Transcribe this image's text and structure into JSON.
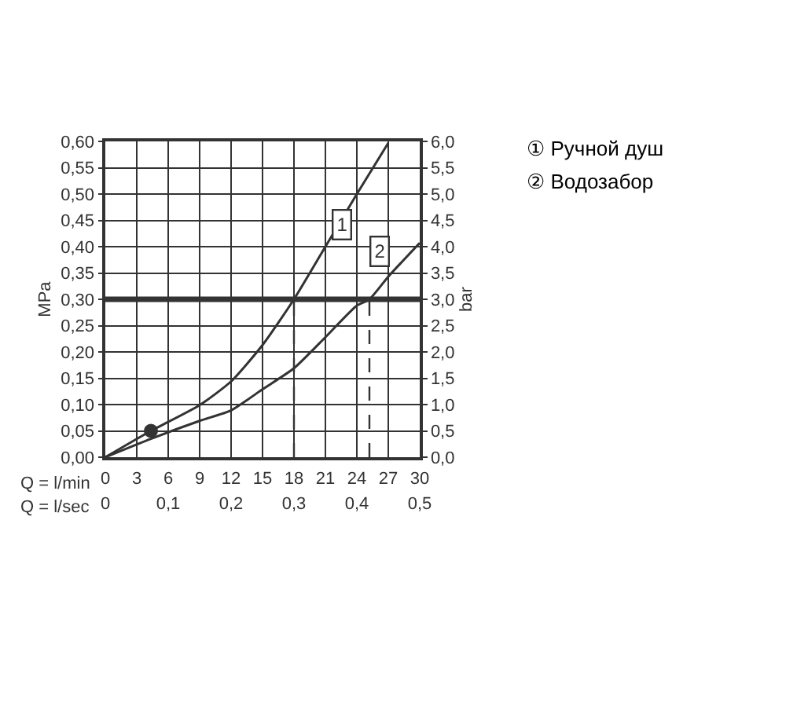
{
  "chart_data": {
    "type": "line",
    "xlabel": "Q = l/min",
    "x2label": "Q = l/sec",
    "ylabel": "MPa",
    "y2label": "bar",
    "xlim": [
      0,
      30
    ],
    "xticks": [
      0,
      3,
      6,
      9,
      12,
      15,
      18,
      21,
      24,
      27,
      30
    ],
    "x2lim": [
      0,
      0.5
    ],
    "x2ticks": [
      0,
      {
        "value": 0.1,
        "label": "0,1"
      },
      {
        "value": 0.2,
        "label": "0,2"
      },
      {
        "value": 0.3,
        "label": "0,3"
      },
      {
        "value": 0.4,
        "label": "0,4"
      },
      {
        "value": 0.5,
        "label": "0,5"
      }
    ],
    "ylim": [
      0,
      0.6
    ],
    "yticks": [
      {
        "value": 0,
        "label": "0,00"
      },
      {
        "value": 0.05,
        "label": "0,05"
      },
      {
        "value": 0.1,
        "label": "0,10"
      },
      {
        "value": 0.15,
        "label": "0,15"
      },
      {
        "value": 0.2,
        "label": "0,20"
      },
      {
        "value": 0.25,
        "label": "0,25"
      },
      {
        "value": 0.3,
        "label": "0,30"
      },
      {
        "value": 0.35,
        "label": "0,35"
      },
      {
        "value": 0.4,
        "label": "0,40"
      },
      {
        "value": 0.45,
        "label": "0,45"
      },
      {
        "value": 0.5,
        "label": "0,50"
      },
      {
        "value": 0.55,
        "label": "0,55"
      },
      {
        "value": 0.6,
        "label": "0,60"
      }
    ],
    "y2lim": [
      0,
      6
    ],
    "y2ticks": [
      {
        "value": 0,
        "label": "0,0"
      },
      {
        "value": 0.5,
        "label": "0,5"
      },
      {
        "value": 1,
        "label": "1,0"
      },
      {
        "value": 1.5,
        "label": "1,5"
      },
      {
        "value": 2,
        "label": "2,0"
      },
      {
        "value": 2.5,
        "label": "2,5"
      },
      {
        "value": 3,
        "label": "3,0"
      },
      {
        "value": 3.5,
        "label": "3,5"
      },
      {
        "value": 4,
        "label": "4,0"
      },
      {
        "value": 4.5,
        "label": "4,5"
      },
      {
        "value": 5,
        "label": "5,0"
      },
      {
        "value": 5.5,
        "label": "5,5"
      },
      {
        "value": 6,
        "label": "6,0"
      }
    ],
    "grid": true,
    "marker": "none",
    "line_style": "solid",
    "series": [
      {
        "color": "#333333",
        "x": [
          0,
          4.35,
          9,
          12,
          15,
          18,
          21,
          24,
          27
        ],
        "values": [
          0,
          0.05,
          0.099,
          0.144,
          0.213,
          0.3,
          0.4,
          0.5,
          0.597
        ]
      },
      {
        "color": "#333333",
        "x": [
          0,
          4.35,
          9,
          12,
          15,
          18,
          21,
          24,
          25.2,
          27,
          30
        ],
        "values": [
          0,
          0.035,
          0.069,
          0.089,
          0.129,
          0.169,
          0.228,
          0.288,
          0.3,
          0.343,
          0.407
        ]
      },
      {
        "type": "scatter",
        "marker": "circle",
        "color": "#333333",
        "x": [
          4.35
        ],
        "values": [
          0.05
        ]
      },
      {
        "type": "line",
        "line_style": "dashed",
        "color": "#333333",
        "x": [
          18,
          18
        ],
        "values": [
          0,
          0.3
        ]
      },
      {
        "type": "line",
        "line_style": "dashed",
        "color": "#333333",
        "x": [
          25.2,
          25.2
        ],
        "values": [
          0,
          0.3
        ]
      }
    ],
    "ref_lines": [
      {
        "axis": "y",
        "value": 0.3,
        "color": "#333333",
        "line_style": "solid"
      }
    ],
    "annotations": [
      {
        "text": "1",
        "x": 22.6,
        "y": 0.443
      },
      {
        "text": "2",
        "x": 26.2,
        "y": 0.39
      },
      "① Ручной душ",
      "② Водозабор"
    ]
  }
}
